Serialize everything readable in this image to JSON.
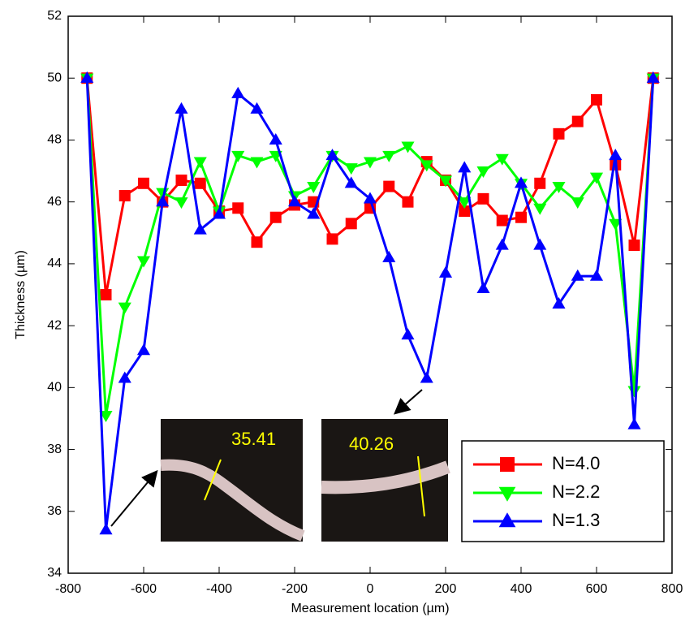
{
  "chart_data": {
    "type": "line",
    "xlabel": "Measurement location (µm)",
    "ylabel": "Thickness (µm)",
    "x": [
      -750,
      -700,
      -650,
      -600,
      -550,
      -500,
      -450,
      -400,
      -350,
      -300,
      -250,
      -200,
      -150,
      -100,
      -50,
      0,
      50,
      100,
      150,
      200,
      250,
      300,
      350,
      400,
      450,
      500,
      550,
      600,
      650,
      700,
      750
    ],
    "series": [
      {
        "name": "N=4.0",
        "color": "#ff0000",
        "marker": "square",
        "values": [
          50,
          43.0,
          46.2,
          46.6,
          46.0,
          46.7,
          46.6,
          45.7,
          45.8,
          44.7,
          45.5,
          45.9,
          46.0,
          44.8,
          45.3,
          45.8,
          46.5,
          46.0,
          47.3,
          46.7,
          45.7,
          46.1,
          45.4,
          45.5,
          46.6,
          48.2,
          48.6,
          49.3,
          47.2,
          44.6,
          50
        ]
      },
      {
        "name": "N=2.2",
        "color": "#00ff00",
        "marker": "triangle-down",
        "values": [
          50,
          39.1,
          42.6,
          44.1,
          46.3,
          46.0,
          47.3,
          45.7,
          47.5,
          47.3,
          47.5,
          46.2,
          46.5,
          47.5,
          47.1,
          47.3,
          47.5,
          47.8,
          47.2,
          46.7,
          46.0,
          47.0,
          47.4,
          46.6,
          45.8,
          46.5,
          46.0,
          46.8,
          45.3,
          39.9,
          50
        ]
      },
      {
        "name": "N=1.3",
        "color": "#0000ff",
        "marker": "triangle-up",
        "values": [
          50,
          35.4,
          40.3,
          41.2,
          46.0,
          49.0,
          45.1,
          45.6,
          49.5,
          49.0,
          48.0,
          46.0,
          45.6,
          47.5,
          46.6,
          46.1,
          44.2,
          41.7,
          40.3,
          43.7,
          47.1,
          43.2,
          44.6,
          46.6,
          44.6,
          42.7,
          43.6,
          43.6,
          47.5,
          38.8,
          50
        ]
      }
    ],
    "xlim": [
      -800,
      800
    ],
    "xticks": [
      -800,
      -600,
      -400,
      -200,
      0,
      200,
      400,
      600,
      800
    ],
    "ylim": [
      34,
      52
    ],
    "yticks": [
      34,
      36,
      38,
      40,
      42,
      44,
      46,
      48,
      50,
      52
    ],
    "legend": "lower right",
    "annotations": [
      "35.41",
      "40.26"
    ]
  }
}
